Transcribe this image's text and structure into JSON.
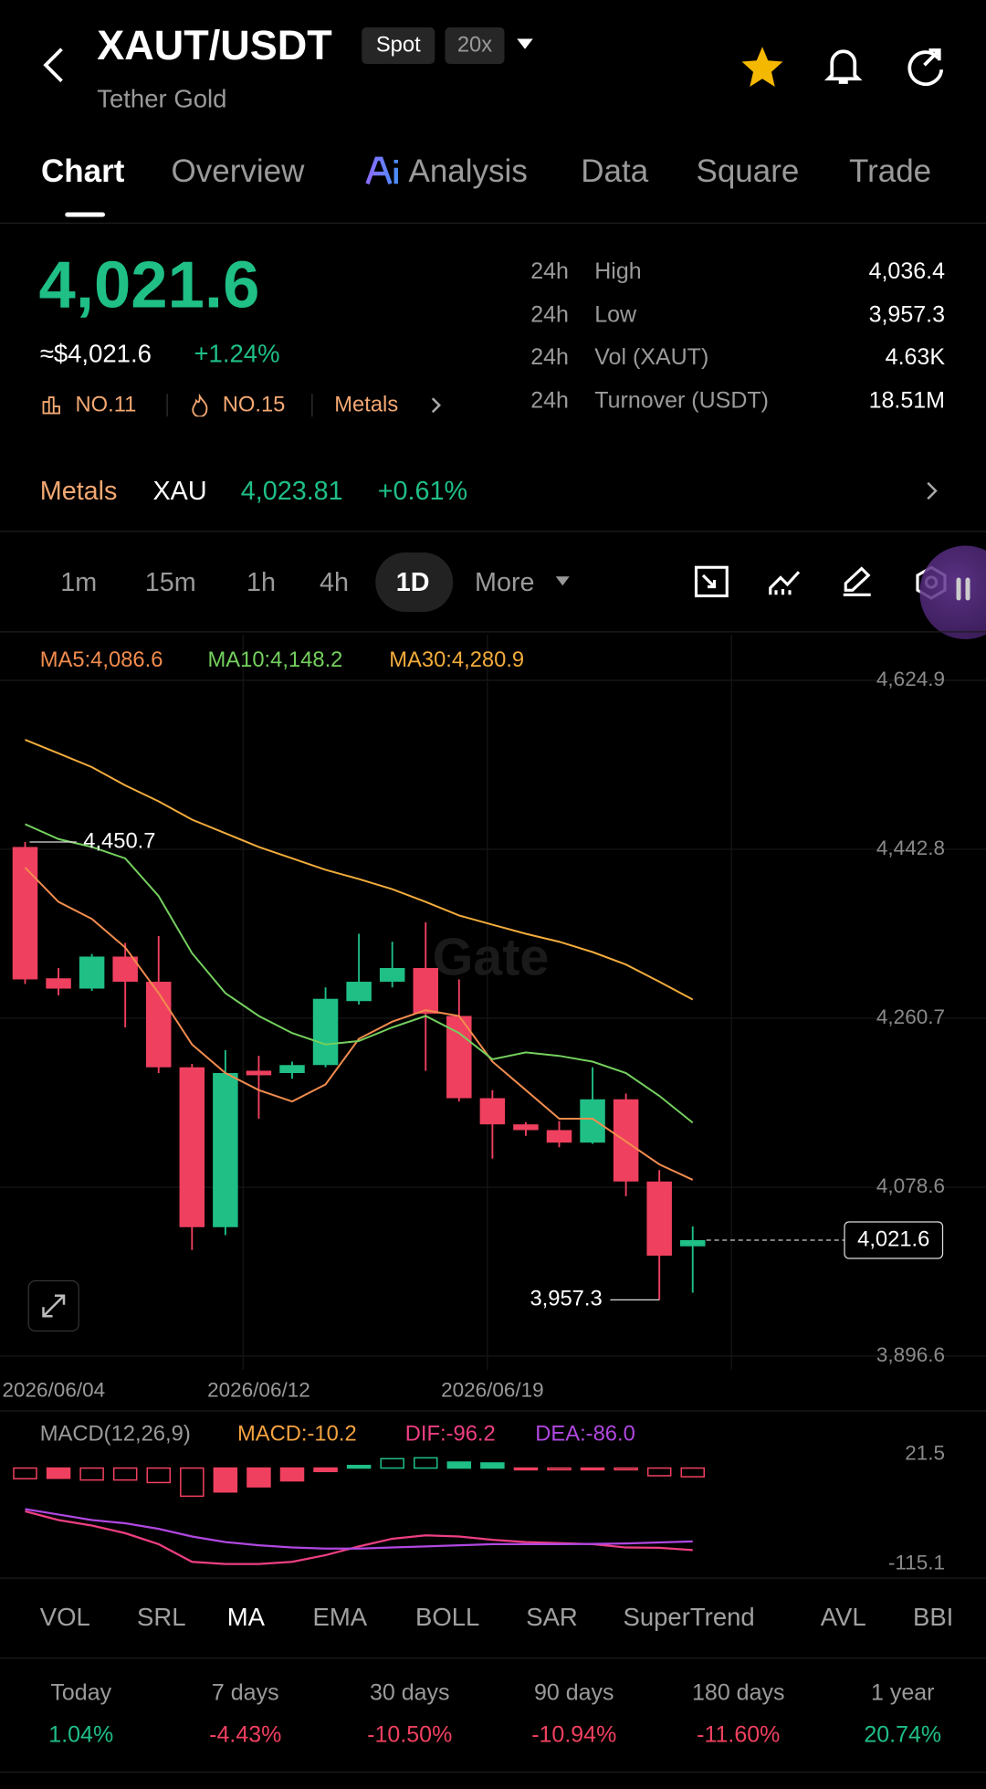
{
  "header": {
    "title": "XAUT/USDT",
    "tags": [
      "Spot",
      "20x"
    ],
    "subtitle": "Tether Gold"
  },
  "tabs": [
    "Chart",
    "Overview",
    "Analysis",
    "Data",
    "Square",
    "Trade"
  ],
  "price": {
    "last": "4,021.6",
    "usd": "≈$4,021.6",
    "change": "+1.24%",
    "ranks": [
      "NO.11",
      "NO.15"
    ],
    "category": "Metals"
  },
  "stats": [
    {
      "period": "24h",
      "label": "High",
      "value": "4,036.4"
    },
    {
      "period": "24h",
      "label": "Low",
      "value": "3,957.3"
    },
    {
      "period": "24h",
      "label": "Vol (XAUT)",
      "value": "4.63K"
    },
    {
      "period": "24h",
      "label": "Turnover (USDT)",
      "value": "18.51M"
    }
  ],
  "related": {
    "label": "Metals",
    "symbol": "XAU",
    "price": "4,023.81",
    "change": "+0.61%"
  },
  "intervals": [
    "1m",
    "15m",
    "1h",
    "4h",
    "1D",
    "More"
  ],
  "chart_data": [
    {
      "type": "candlestick",
      "categories": [
        "2026/06/04",
        null,
        null,
        null,
        null,
        null,
        null,
        "2026/06/12",
        null,
        null,
        null,
        null,
        null,
        null,
        "2026/06/19",
        null,
        null,
        null,
        null,
        null,
        null
      ],
      "open": [
        4445.3,
        4303.8,
        4292.7,
        4327.2,
        4300.1,
        4207.9,
        4035.6,
        4204.2,
        4201.7,
        4210.3,
        4279.2,
        4300.1,
        4314.9,
        4263.2,
        4174.6,
        4146.4,
        4140.2,
        4126.7,
        4173.4,
        4084.8,
        4015.0
      ],
      "high": [
        4450.7,
        4314.9,
        4330.0,
        4341.9,
        4349.3,
        4211.6,
        4226.3,
        4220.2,
        4214.0,
        4294.0,
        4351.8,
        4343.2,
        4364.1,
        4302.6,
        4183.3,
        4148.8,
        4150.0,
        4207.9,
        4179.6,
        4097.1,
        4036.4
      ],
      "low": [
        4297.7,
        4285.4,
        4290.3,
        4250.9,
        4201.7,
        4011.0,
        4027.0,
        4152.5,
        4195.6,
        4207.9,
        4275.5,
        4294.0,
        4204.2,
        4171.0,
        4109.4,
        4134.0,
        4121.7,
        4125.4,
        4068.9,
        3957.3,
        3965.0
      ],
      "close": [
        4302.6,
        4292.7,
        4327.2,
        4300.1,
        4207.9,
        4035.6,
        4201.7,
        4199.3,
        4210.3,
        4281.7,
        4300.1,
        4314.9,
        4265.7,
        4174.6,
        4146.4,
        4140.2,
        4126.7,
        4173.4,
        4084.8,
        4004.9,
        4021.6
      ],
      "up_color": "#1fbf86",
      "down_color": "#f0405f",
      "series": [
        {
          "name": "MA5:4,086.6",
          "color": "#f28c4e",
          "values": [
            4423.1,
            4386.2,
            4367.8,
            4337.0,
            4287.8,
            4232.5,
            4201.7,
            4183.3,
            4171.0,
            4189.4,
            4238.6,
            4257.1,
            4269.4,
            4263.2,
            4214.0,
            4183.3,
            4152.5,
            4152.5,
            4127.9,
            4103.3,
            4086.6
          ]
        },
        {
          "name": "MA10:4,148.2",
          "color": "#74d05e",
          "values": [
            4469.9,
            4453.9,
            4445.3,
            4433.0,
            4392.4,
            4330.9,
            4287.8,
            4263.2,
            4244.8,
            4232.5,
            4236.2,
            4250.9,
            4263.2,
            4244.8,
            4216.5,
            4223.9,
            4220.2,
            4214.0,
            4201.7,
            4177.1,
            4148.2
          ]
        },
        {
          "name": "MA30:4,280.9",
          "color": "#f2ac3c",
          "values": [
            4560.9,
            4546.2,
            4531.4,
            4511.7,
            4494.5,
            4474.8,
            4460.1,
            4445.3,
            4433.0,
            4420.7,
            4410.8,
            4399.8,
            4386.2,
            4371.5,
            4361.6,
            4351.8,
            4343.2,
            4332.1,
            4318.6,
            4300.1,
            4280.9
          ]
        }
      ],
      "ylim": [
        3896.6,
        4624.9
      ],
      "yticks": [
        {
          "value": 4624.9,
          "label": "4,624.9"
        },
        {
          "value": 4442.8,
          "label": "4,442.8"
        },
        {
          "value": 4260.7,
          "label": "4,260.7"
        },
        {
          "value": 4078.6,
          "label": "4,078.6"
        },
        {
          "value": 3896.6,
          "label": "3,896.6"
        }
      ],
      "annotations": [
        {
          "value": 4450.7,
          "label": "4,450.7"
        },
        {
          "value": 3957.3,
          "label": "3,957.3"
        },
        {
          "value": 4021.6,
          "label": "4,021.6"
        }
      ],
      "watermark": "Gate"
    },
    {
      "type": "macd",
      "title": "MACD(12,26,9)",
      "up_color": "#1fbf86",
      "down_color": "#f0405f",
      "series": [
        {
          "name": "MACD:-10.2",
          "color": "#f5a340",
          "values": [
            -12.5,
            -12,
            -14,
            -14,
            -17,
            -33,
            -28,
            -22,
            -15,
            -4,
            3,
            11,
            12,
            7,
            6,
            -0.5,
            -1.5,
            -1,
            -2,
            -9,
            -10.2
          ]
        },
        {
          "name": "DIF:-96.2",
          "color": "#ee3f83",
          "values": [
            -50.7,
            -61,
            -67.4,
            -76.4,
            -89.3,
            -110,
            -112.5,
            -112.5,
            -110,
            -102.2,
            -91.9,
            -82.9,
            -79,
            -80.3,
            -84.2,
            -86.8,
            -88,
            -89.3,
            -93.2,
            -93.5,
            -96.2
          ]
        },
        {
          "name": "DEA:-86.0",
          "color": "#b048e0",
          "values": [
            -48.1,
            -54.5,
            -61,
            -64.8,
            -71.3,
            -80.3,
            -86.8,
            -90.6,
            -93.2,
            -94.5,
            -94.5,
            -93.2,
            -91.9,
            -90.6,
            -89.3,
            -89.3,
            -89.3,
            -89.0,
            -88.5,
            -87.2,
            -86.0
          ]
        }
      ],
      "ylim": [
        -115.1,
        21.5
      ],
      "yticks": [
        21.5,
        -115.1
      ]
    }
  ],
  "indicators": [
    "VOL",
    "SRL",
    "MA",
    "EMA",
    "BOLL",
    "SAR",
    "SuperTrend",
    "AVL",
    "BBI"
  ],
  "performance": [
    {
      "period": "Today",
      "value": "1.04%"
    },
    {
      "period": "7 days",
      "value": "-4.43%"
    },
    {
      "period": "30 days",
      "value": "-10.50%"
    },
    {
      "period": "90 days",
      "value": "-10.94%"
    },
    {
      "period": "180 days",
      "value": "-11.60%"
    },
    {
      "period": "1 year",
      "value": "20.74%"
    }
  ]
}
